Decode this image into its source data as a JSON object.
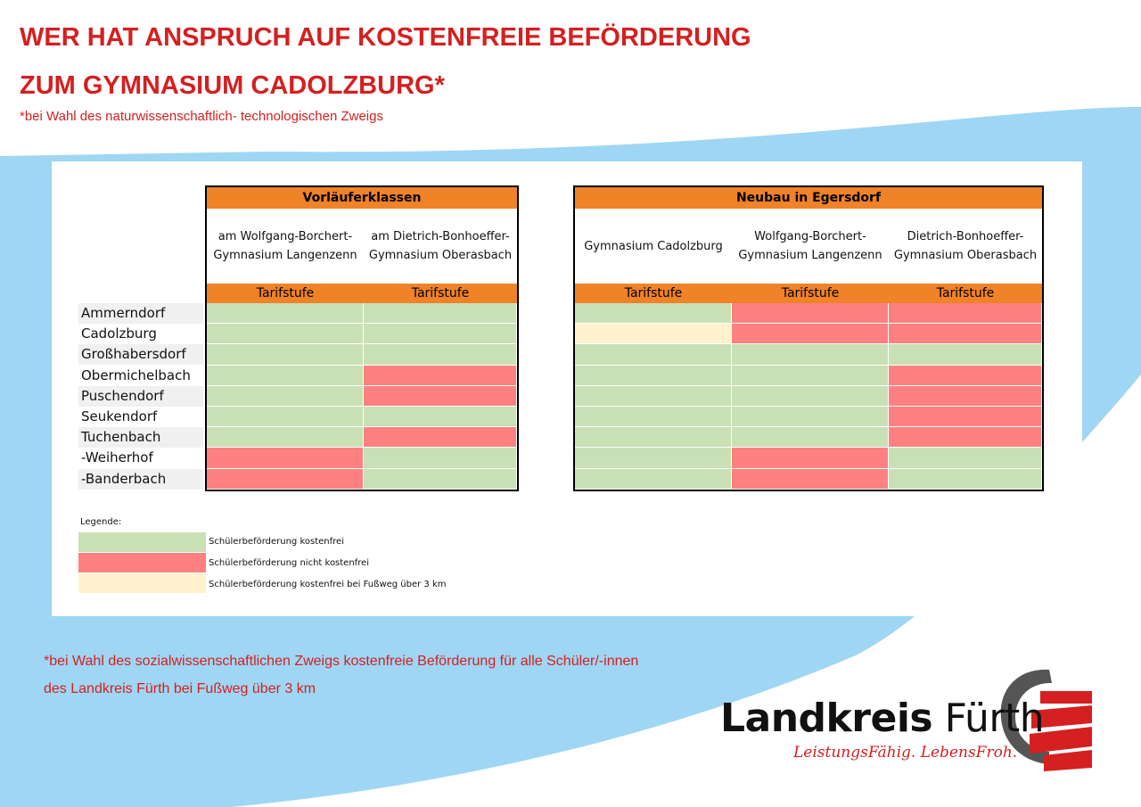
{
  "header": {
    "title_line1": "WER HAT ANSPRUCH AUF KOSTENFREIE BEFÖRDERUNG",
    "title_line2": "ZUM GYMNASIUM CADOLZBURG*",
    "subtitle": "*bei Wahl des naturwissenschaftlich- technologischen Zweigs"
  },
  "colors": {
    "free": "#c8e0b4",
    "not_free": "#ff8080",
    "free_3km": "#fff2cc",
    "header_orange": "#f08227",
    "accent_red": "#d42020",
    "background_blue": "#9fd6f3"
  },
  "rows": [
    "Ammerndorf",
    "Cadolzburg",
    "Großhabersdorf",
    "Obermichelbach",
    "Puschendorf",
    "Seukendorf",
    "Tuchenbach",
    "-Weiherhof",
    "-Banderbach"
  ],
  "tables": [
    {
      "title": "Vorläuferklassen",
      "columns": [
        {
          "name": "am Wolfgang-Borchert-\nGymnasium Langenzenn",
          "tarif": "Tarifstufe",
          "cells": [
            "free",
            "free",
            "free",
            "free",
            "free",
            "free",
            "free",
            "not_free",
            "not_free"
          ]
        },
        {
          "name": "am Dietrich-Bonhoeffer-\nGymnasium Oberasbach",
          "tarif": "Tarifstufe",
          "cells": [
            "free",
            "free",
            "free",
            "not_free",
            "not_free",
            "free",
            "not_free",
            "free",
            "free"
          ]
        }
      ]
    },
    {
      "title": "Neubau in Egersdorf",
      "columns": [
        {
          "name": "Gymnasium Cadolzburg",
          "tarif": "Tarifstufe",
          "cells": [
            "free",
            "free_3km",
            "free",
            "free",
            "free",
            "free",
            "free",
            "free",
            "free"
          ]
        },
        {
          "name": "Wolfgang-Borchert-\nGymnasium Langenzenn",
          "tarif": "Tarifstufe",
          "cells": [
            "not_free",
            "not_free",
            "free",
            "free",
            "free",
            "free",
            "free",
            "not_free",
            "not_free"
          ]
        },
        {
          "name": "Dietrich-Bonhoeffer-\nGymnasium Oberasbach",
          "tarif": "Tarifstufe",
          "cells": [
            "not_free",
            "not_free",
            "free",
            "not_free",
            "not_free",
            "not_free",
            "not_free",
            "free",
            "free"
          ]
        }
      ]
    }
  ],
  "legend": {
    "title": "Legende:",
    "items": [
      {
        "key": "free",
        "label": "Schülerbeförderung kostenfrei"
      },
      {
        "key": "not_free",
        "label": "Schülerbeförderung nicht kostenfrei"
      },
      {
        "key": "free_3km",
        "label": "Schülerbeförderung  kostenfrei bei Fußweg über 3 km"
      }
    ]
  },
  "footnote": {
    "line1": "*bei Wahl des sozialwissenschaftlichen Zweigs kostenfreie Beförderung für alle Schüler/-innen",
    "line2": "des Landkreis Fürth bei Fußweg über 3 km"
  },
  "logo": {
    "name_bold": "Landkreis",
    "name_regular": "Fürth",
    "tagline": "LeistungsFähig. LebensFroh.",
    "icon": "landkreis-fuerth-emblem-icon"
  }
}
